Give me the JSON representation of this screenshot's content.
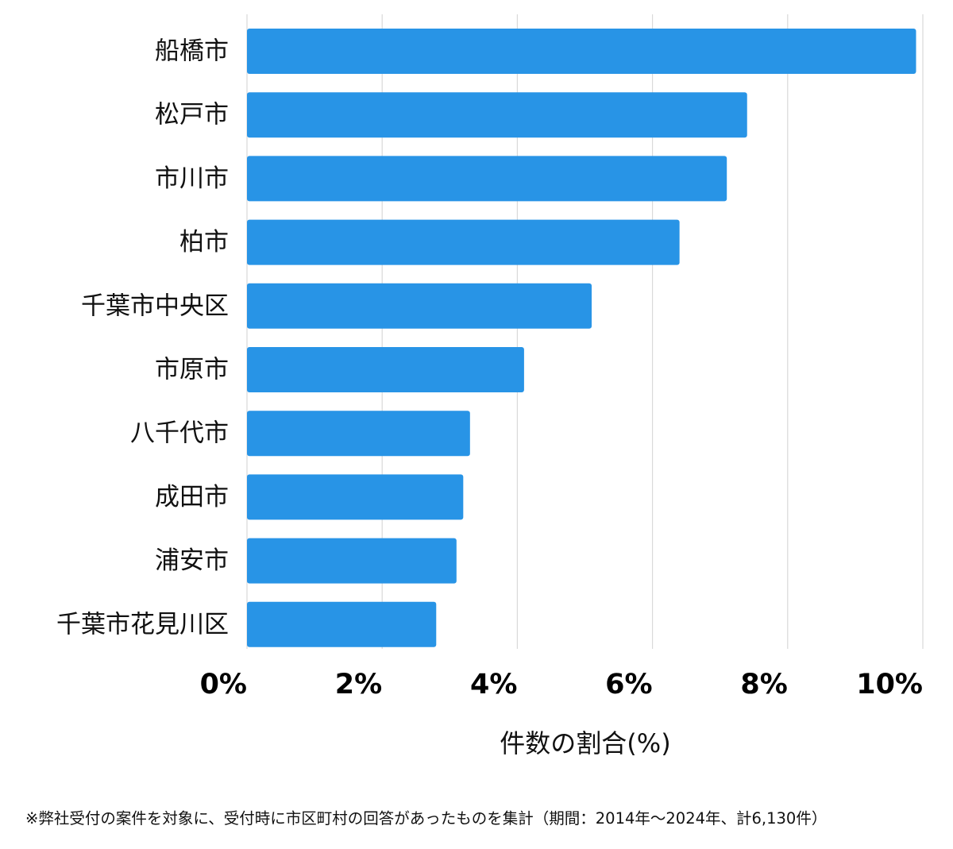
{
  "chart_data": {
    "type": "bar",
    "orientation": "horizontal",
    "categories": [
      "船橋市",
      "松戸市",
      "市川市",
      "柏市",
      "千葉市中央区",
      "市原市",
      "八千代市",
      "成田市",
      "浦安市",
      "千葉市花見川区"
    ],
    "values": [
      9.9,
      7.4,
      7.1,
      6.4,
      5.1,
      4.1,
      3.3,
      3.2,
      3.1,
      2.8
    ],
    "xlim": [
      0,
      10
    ],
    "ticks": [
      {
        "value": 0,
        "label": "0%"
      },
      {
        "value": 2,
        "label": "2%"
      },
      {
        "value": 4,
        "label": "4%"
      },
      {
        "value": 6,
        "label": "6%"
      },
      {
        "value": 8,
        "label": "8%"
      },
      {
        "value": 10,
        "label": "10%"
      }
    ],
    "xlabel": "件数の割合(%)",
    "ylabel": "",
    "grid": "vertical",
    "bar_color": "#2894e6",
    "grid_color": "#d9d9d9"
  },
  "footnote": "※弊社受付の案件を対象に、受付時に市区町村の回答があったものを集計（期間：2014年～2024年、計6,130件）"
}
